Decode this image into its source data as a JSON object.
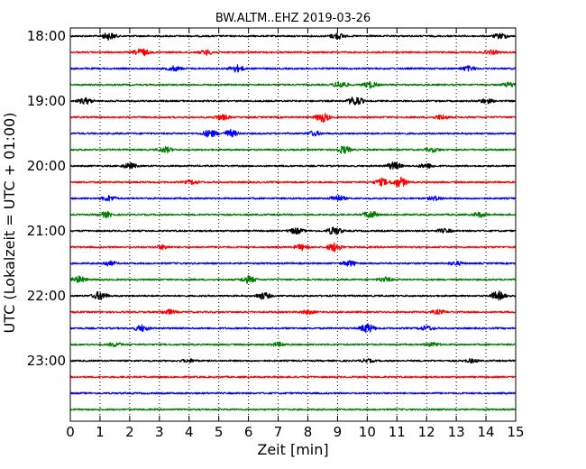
{
  "chart_data": {
    "type": "line",
    "title": "BW.ALTM..EHZ 2019-03-26",
    "xlabel": "Zeit  [min]",
    "ylabel": "UTC (Lokalzeit = UTC + 01:00)",
    "xlim": [
      0,
      15
    ],
    "x_ticks": [
      "0",
      "1",
      "2",
      "3",
      "4",
      "5",
      "6",
      "7",
      "8",
      "9",
      "10",
      "11",
      "12",
      "13",
      "14",
      "15"
    ],
    "y_ticks": [
      "18:00",
      "19:00",
      "20:00",
      "21:00",
      "22:00",
      "23:00"
    ],
    "grid": "vertical dotted",
    "trace_colors": [
      "#000000",
      "#ff0000",
      "#0000ff",
      "#008000"
    ],
    "traces": [
      {
        "start": "18:00",
        "bursts": [
          [
            1.3,
            0.9
          ],
          [
            9.0,
            0.8
          ],
          [
            14.5,
            0.7
          ]
        ]
      },
      {
        "start": "18:15",
        "bursts": [
          [
            2.4,
            1.0
          ],
          [
            4.6,
            0.6
          ],
          [
            14.2,
            0.5
          ]
        ]
      },
      {
        "start": "18:30",
        "bursts": [
          [
            3.5,
            0.6
          ],
          [
            5.6,
            0.9
          ],
          [
            13.4,
            0.6
          ]
        ]
      },
      {
        "start": "18:45",
        "bursts": [
          [
            9.1,
            0.9
          ],
          [
            10.1,
            0.8
          ],
          [
            14.8,
            0.6
          ]
        ]
      },
      {
        "start": "19:00",
        "bursts": [
          [
            0.5,
            0.8
          ],
          [
            9.6,
            1.3
          ],
          [
            14.0,
            0.6
          ]
        ]
      },
      {
        "start": "19:15",
        "bursts": [
          [
            5.1,
            0.7
          ],
          [
            8.5,
            1.2
          ],
          [
            12.5,
            0.6
          ]
        ]
      },
      {
        "start": "19:30",
        "bursts": [
          [
            4.7,
            1.0
          ],
          [
            5.4,
            0.9
          ],
          [
            8.2,
            0.6
          ]
        ]
      },
      {
        "start": "19:45",
        "bursts": [
          [
            3.2,
            0.7
          ],
          [
            9.2,
            1.0
          ],
          [
            12.2,
            0.5
          ]
        ]
      },
      {
        "start": "20:00",
        "bursts": [
          [
            2.0,
            0.7
          ],
          [
            10.9,
            1.0
          ],
          [
            12.0,
            0.6
          ]
        ]
      },
      {
        "start": "20:15",
        "bursts": [
          [
            10.5,
            0.9
          ],
          [
            11.1,
            1.3
          ],
          [
            4.1,
            0.5
          ]
        ]
      },
      {
        "start": "20:30",
        "bursts": [
          [
            1.3,
            0.7
          ],
          [
            9.0,
            0.8
          ],
          [
            12.3,
            0.5
          ]
        ]
      },
      {
        "start": "20:45",
        "bursts": [
          [
            1.2,
            0.7
          ],
          [
            10.1,
            1.0
          ],
          [
            13.8,
            0.6
          ]
        ]
      },
      {
        "start": "21:00",
        "bursts": [
          [
            7.6,
            0.8
          ],
          [
            8.9,
            1.1
          ],
          [
            12.6,
            0.5
          ]
        ]
      },
      {
        "start": "21:15",
        "bursts": [
          [
            7.8,
            0.7
          ],
          [
            8.9,
            1.1
          ],
          [
            3.1,
            0.5
          ]
        ]
      },
      {
        "start": "21:30",
        "bursts": [
          [
            1.3,
            0.6
          ],
          [
            9.4,
            0.7
          ],
          [
            13.0,
            0.5
          ]
        ]
      },
      {
        "start": "21:45",
        "bursts": [
          [
            0.3,
            0.8
          ],
          [
            6.0,
            0.9
          ],
          [
            10.6,
            0.6
          ]
        ]
      },
      {
        "start": "22:00",
        "bursts": [
          [
            1.0,
            1.1
          ],
          [
            6.5,
            0.9
          ],
          [
            14.4,
            1.2
          ]
        ]
      },
      {
        "start": "22:15",
        "bursts": [
          [
            3.3,
            0.6
          ],
          [
            8.0,
            0.5
          ],
          [
            12.4,
            0.5
          ]
        ]
      },
      {
        "start": "22:30",
        "bursts": [
          [
            2.4,
            0.8
          ],
          [
            10.0,
            1.2
          ],
          [
            12.0,
            0.6
          ]
        ]
      },
      {
        "start": "22:45",
        "bursts": [
          [
            1.5,
            0.5
          ],
          [
            7.0,
            0.5
          ],
          [
            12.2,
            0.5
          ]
        ]
      },
      {
        "start": "23:00",
        "bursts": [
          [
            4.0,
            0.4
          ],
          [
            10.0,
            0.4
          ],
          [
            13.5,
            0.4
          ]
        ]
      },
      {
        "start": "23:15",
        "bursts": []
      },
      {
        "start": "23:30",
        "bursts": []
      },
      {
        "start": "23:45",
        "bursts": []
      }
    ]
  }
}
